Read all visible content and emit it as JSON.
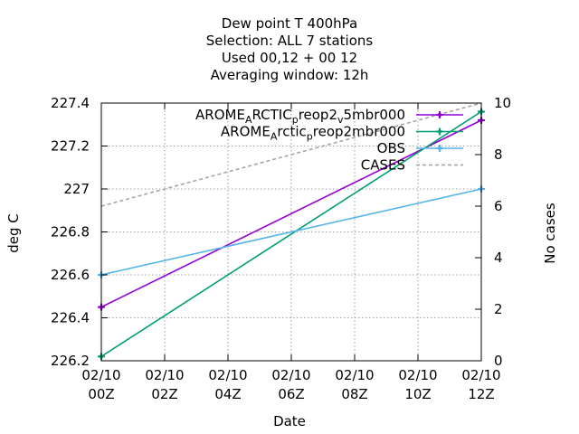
{
  "chart_data": {
    "type": "line",
    "title_lines": [
      "Dew point T 400hPa",
      "Selection: ALL      7 stations",
      "Used  00,12  + 00 12",
      "Averaging window: 12h"
    ],
    "xlabel": "Date",
    "ylabel": "deg C",
    "y2label": "No cases",
    "x_tick_labels": [
      [
        "02/10",
        "00Z"
      ],
      [
        "02/10",
        "02Z"
      ],
      [
        "02/10",
        "04Z"
      ],
      [
        "02/10",
        "06Z"
      ],
      [
        "02/10",
        "08Z"
      ],
      [
        "02/10",
        "10Z"
      ],
      [
        "02/10",
        "12Z"
      ]
    ],
    "x_ticks_hours": [
      0,
      2,
      4,
      6,
      8,
      10,
      12
    ],
    "xlim_hours": [
      0,
      12
    ],
    "ylim": [
      226.2,
      227.4
    ],
    "y_ticks": [
      226.2,
      226.4,
      226.6,
      226.8,
      227,
      227.2,
      227.4
    ],
    "y_tick_labels": [
      "226.2",
      "226.4",
      "226.6",
      "226.8",
      "227",
      "227.2",
      "227.4"
    ],
    "y2lim": [
      0,
      10
    ],
    "y2_ticks": [
      0,
      2,
      4,
      6,
      8,
      10
    ],
    "y2_tick_labels": [
      "0",
      "2",
      "4",
      "6",
      "8",
      "10"
    ],
    "grid": true,
    "legend_position": "top-right",
    "series": [
      {
        "name_parts": [
          [
            "AROME",
            ""
          ],
          [
            "A",
            "sub"
          ],
          [
            "RCTIC",
            ""
          ],
          [
            "p",
            "sub"
          ],
          [
            "reop2",
            ""
          ],
          [
            "v",
            "sub"
          ],
          [
            "5mbr000",
            ""
          ]
        ],
        "color": "#9400d3",
        "axis": "y",
        "marker": "plus",
        "x_hours": [
          0,
          12
        ],
        "y": [
          226.45,
          227.32
        ]
      },
      {
        "name_parts": [
          [
            "AROME",
            ""
          ],
          [
            "A",
            "sub"
          ],
          [
            "rctic",
            ""
          ],
          [
            "p",
            "sub"
          ],
          [
            "reop2mbr000",
            ""
          ]
        ],
        "color": "#009e73",
        "axis": "y",
        "marker": "plus",
        "x_hours": [
          0,
          12
        ],
        "y": [
          226.22,
          227.36
        ]
      },
      {
        "name_parts": [
          [
            "OBS",
            ""
          ]
        ],
        "color": "#56b4e9",
        "axis": "y",
        "marker": "plus",
        "x_hours": [
          0,
          12
        ],
        "y": [
          226.6,
          227.0
        ]
      },
      {
        "name_parts": [
          [
            "CASES",
            ""
          ]
        ],
        "color": "#a0a0a0",
        "axis": "y2",
        "dashed": true,
        "marker": "none",
        "x_hours": [
          0,
          12
        ],
        "y": [
          6,
          10
        ]
      }
    ]
  }
}
